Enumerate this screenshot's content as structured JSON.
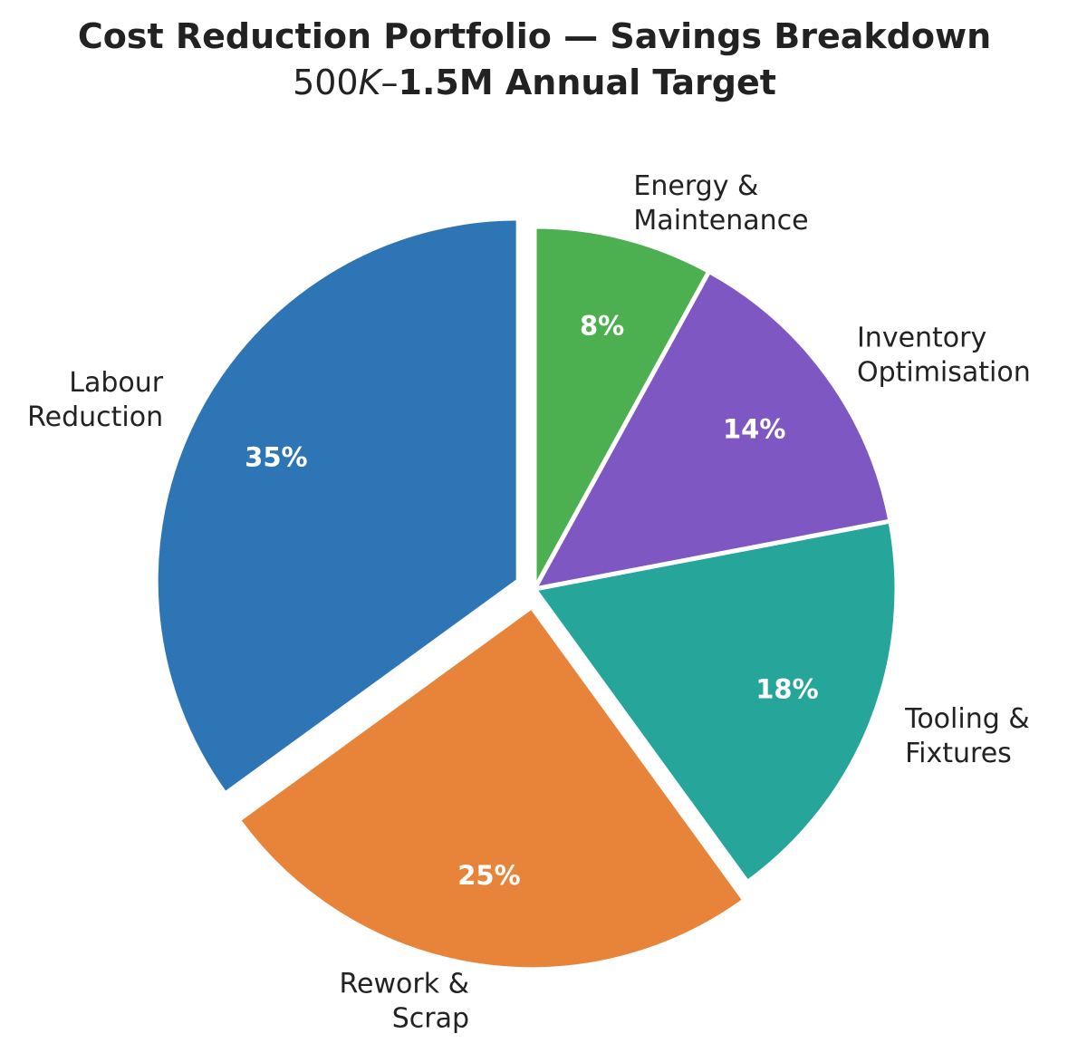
{
  "chart_data": {
    "type": "pie",
    "title": "Cost Reduction Portfolio — Savings Breakdown",
    "subtitle_parts": [
      "500",
      "K",
      "–",
      "1.5M Annual Target"
    ],
    "categories": [
      "Labour\nReduction",
      "Rework &\nScrap",
      "Tooling &\nFixtures",
      "Inventory\nOptimisation",
      "Energy &\nMaintenance"
    ],
    "values": [
      35,
      25,
      18,
      14,
      8
    ],
    "pct_labels": [
      "35%",
      "25%",
      "18%",
      "14%",
      "8%"
    ],
    "colors": [
      "#2e75b6",
      "#e8843a",
      "#26a69a",
      "#7e57c2",
      "#4caf50"
    ],
    "explode": [
      0.05,
      0.05,
      0,
      0,
      0
    ],
    "start_angle": 90,
    "direction": "counterclockwise"
  }
}
